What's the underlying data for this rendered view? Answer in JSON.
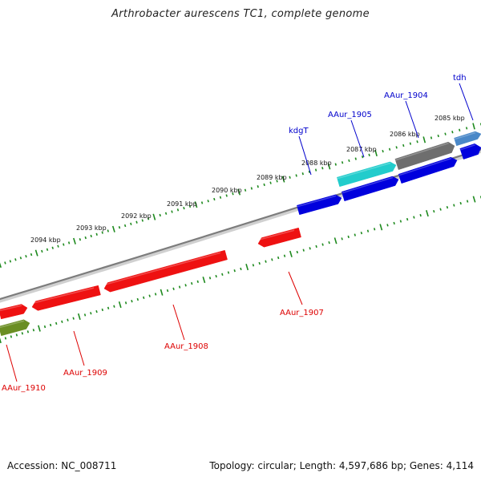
{
  "title": "Arthrobacter aurescens TC1, complete genome",
  "footer": {
    "accession": "Accession: NC_008711",
    "topology": "Topology: circular; Length: 4,597,686 bp; Genes: 4,114"
  },
  "colors": {
    "backbone": "#8a8a8a",
    "tick": "#1e8a1e",
    "red_gene": "#ee1111",
    "blue_gene": "#0000dd",
    "cyan_gene": "#22cccc",
    "gray_gene": "#6e6e6e",
    "olive_gene": "#6b8e23",
    "steel_gene": "#4a88c8",
    "label_blue": "#0000cc",
    "label_red": "#dd0000"
  },
  "kbp_labels": [
    "2085 kbp",
    "2086 kbp",
    "2087 kbp",
    "2088 kbp",
    "2089 kbp",
    "2090 kbp",
    "2091 kbp",
    "2092 kbp",
    "2093 kbp",
    "2094 kbp"
  ],
  "gene_labels_top": [
    "tdh",
    "AAur_1904",
    "AAur_1905",
    "kdgT"
  ],
  "gene_labels_bottom": [
    "AAur_1907",
    "AAur_1908",
    "AAur_1909",
    "AAur_1910"
  ]
}
